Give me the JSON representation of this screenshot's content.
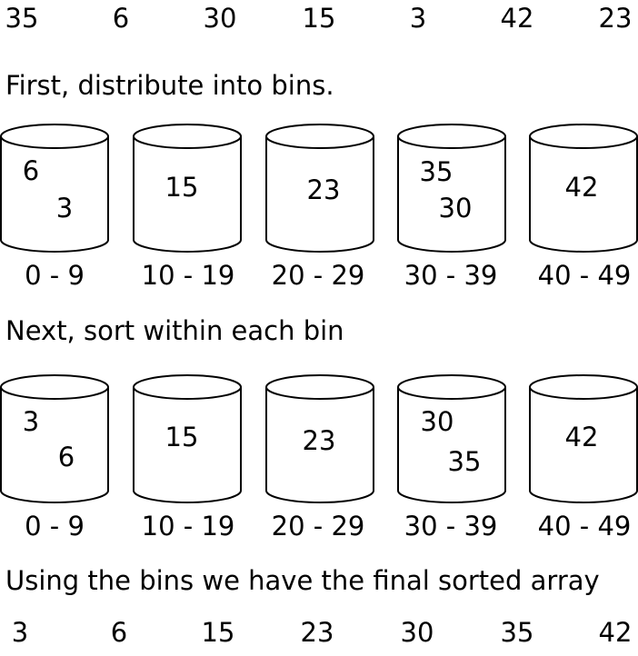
{
  "input_array": [
    "35",
    "6",
    "30",
    "15",
    "3",
    "42",
    "23"
  ],
  "step1_label": "First, distribute into bins.",
  "step2_label": "Next, sort within each bin",
  "step3_label": "Using the bins we have the final sorted array",
  "bins_step1": [
    {
      "range": "0 - 9",
      "items": [
        "6",
        "3"
      ]
    },
    {
      "range": "10 - 19",
      "items": [
        "15"
      ]
    },
    {
      "range": "20 - 29",
      "items": [
        "23"
      ]
    },
    {
      "range": "30 - 39",
      "items": [
        "35",
        "30"
      ]
    },
    {
      "range": "40 - 49",
      "items": [
        "42"
      ]
    }
  ],
  "bins_step2": [
    {
      "range": "0 - 9",
      "items": [
        "3",
        "6"
      ]
    },
    {
      "range": "10 - 19",
      "items": [
        "15"
      ]
    },
    {
      "range": "20 - 29",
      "items": [
        "23"
      ]
    },
    {
      "range": "30 - 39",
      "items": [
        "30",
        "35"
      ]
    },
    {
      "range": "40 - 49",
      "items": [
        "42"
      ]
    }
  ],
  "sorted_array": [
    "3",
    "6",
    "15",
    "23",
    "30",
    "35",
    "42"
  ]
}
